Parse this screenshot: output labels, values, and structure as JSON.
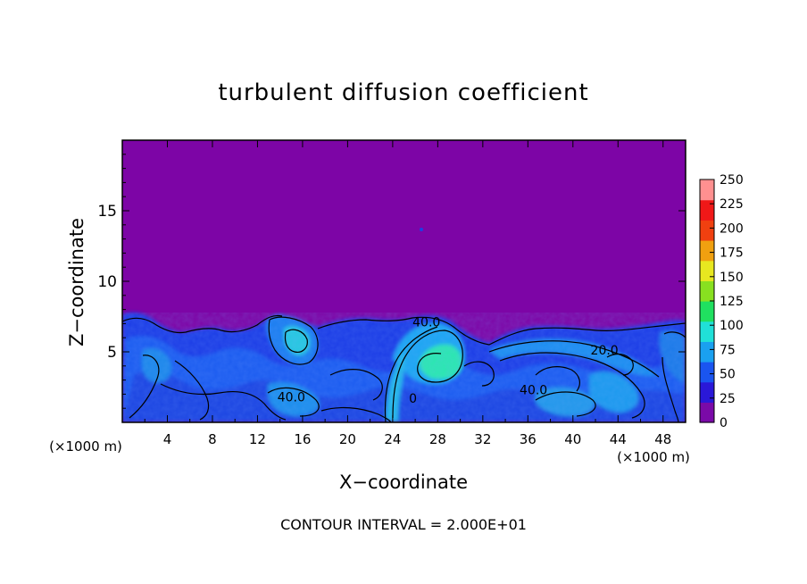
{
  "chart_data": {
    "type": "heatmap",
    "title": "turbulent diffusion coefficient",
    "xlabel": "X−coordinate",
    "ylabel": "Z−coordinate",
    "x_unit_left": "(×1000 m)",
    "x_unit_right": "(×1000 m)",
    "xlim": [
      0,
      50
    ],
    "ylim": [
      0,
      20
    ],
    "xticks": [
      4,
      8,
      12,
      16,
      20,
      24,
      28,
      32,
      36,
      40,
      44,
      48
    ],
    "yticks": [
      5,
      10,
      15
    ],
    "colorbar": {
      "range": [
        0,
        250
      ],
      "ticks": [
        0,
        25,
        50,
        75,
        100,
        125,
        150,
        175,
        200,
        225,
        250
      ],
      "colors": [
        "#7a0aa8",
        "#2a18d8",
        "#1a55f0",
        "#1aa0f0",
        "#20e0d8",
        "#20e060",
        "#88e020",
        "#e8e820",
        "#f0a010",
        "#f04010",
        "#f01818",
        "#ff9090"
      ]
    },
    "background_color": "#7d05a6",
    "contour_labels": [
      {
        "text": "40.0",
        "x": 27.0,
        "z": 6.8
      },
      {
        "text": "40.0",
        "x": 15.0,
        "z": 1.5
      },
      {
        "text": "40.0",
        "x": 36.5,
        "z": 2.0
      },
      {
        "text": "20.0",
        "x": 42.8,
        "z": 4.8
      },
      {
        "text": "0",
        "x": 25.8,
        "z": 1.4
      }
    ],
    "footer": "CONTOUR INTERVAL = 2.000E+01"
  }
}
